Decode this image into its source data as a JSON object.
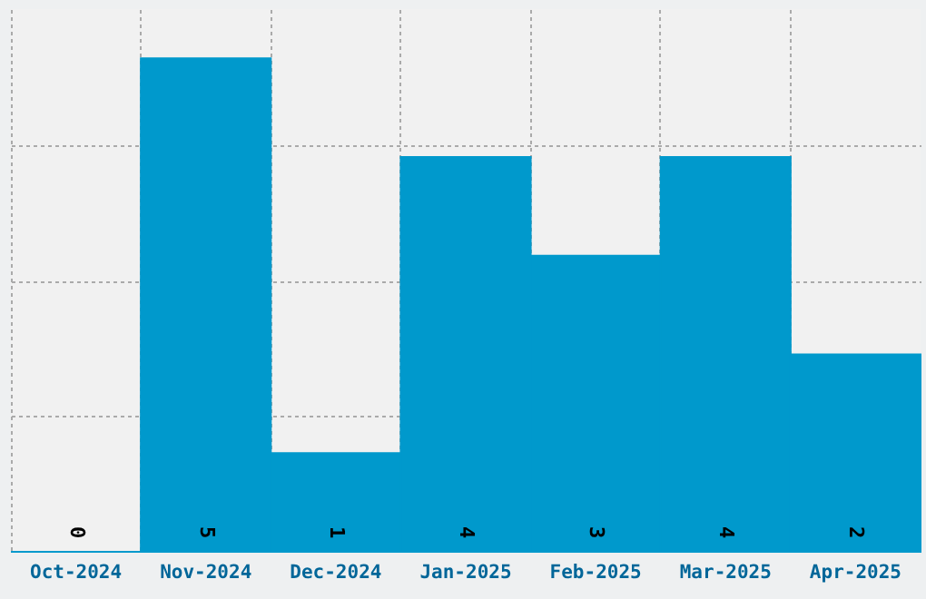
{
  "chart_data": {
    "type": "bar",
    "categories": [
      "Oct-2024",
      "Nov-2024",
      "Dec-2024",
      "Jan-2025",
      "Feb-2025",
      "Mar-2025",
      "Apr-2025"
    ],
    "values": [
      0,
      5,
      1,
      4,
      3,
      4,
      2
    ],
    "color": "#0099cc",
    "ylim": [
      0,
      5.5
    ],
    "yticks": [
      {
        "value": 1.375,
        "label": null
      },
      {
        "value": 2.75,
        "label": null
      },
      {
        "value": 4.125,
        "label": null
      }
    ],
    "tick_labels": "x",
    "grid": true,
    "data_labels": true
  }
}
